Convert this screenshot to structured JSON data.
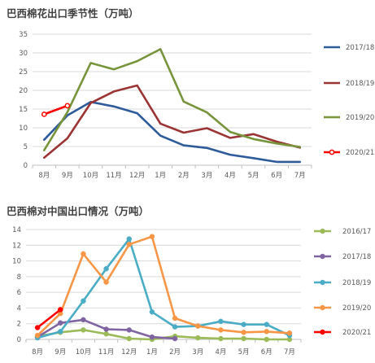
{
  "chart_data": [
    {
      "type": "line",
      "title": "巴西棉花出口季节性（万吨）",
      "categories": [
        "8月",
        "9月",
        "10月",
        "11月",
        "12月",
        "1月",
        "2月",
        "3月",
        "4月",
        "5月",
        "6月",
        "7月"
      ],
      "ylim": [
        0,
        35
      ],
      "yticks": [
        0,
        5,
        10,
        15,
        20,
        25,
        30,
        35
      ],
      "grid": true,
      "legend_position": "right",
      "series": [
        {
          "name": "2017/18",
          "color": "#2e5b9a",
          "marker": "none",
          "values": [
            6.8,
            13.3,
            16.9,
            15.7,
            13.9,
            7.9,
            5.3,
            4.6,
            2.8,
            1.9,
            0.9,
            0.9
          ]
        },
        {
          "name": "2018/19",
          "color": "#9b3435",
          "marker": "none",
          "values": [
            2.0,
            7.2,
            16.6,
            19.7,
            21.3,
            11.1,
            8.7,
            9.9,
            7.3,
            8.3,
            6.3,
            4.7
          ]
        },
        {
          "name": "2019/20",
          "color": "#77943b",
          "marker": "none",
          "values": [
            4.0,
            14.2,
            27.3,
            25.6,
            27.8,
            31.0,
            17.0,
            14.1,
            8.9,
            7.0,
            5.8,
            4.9
          ]
        },
        {
          "name": "2020/21",
          "color": "#ff0000",
          "marker": "open-circle",
          "values": [
            13.6,
            15.9,
            null,
            null,
            null,
            null,
            null,
            null,
            null,
            null,
            null,
            null
          ]
        }
      ]
    },
    {
      "type": "line",
      "title": "巴西棉对中国出口情况（万吨）",
      "categories": [
        "8月",
        "9月",
        "10月",
        "11月",
        "12月",
        "1月",
        "2月",
        "3月",
        "4月",
        "5月",
        "6月",
        "7月"
      ],
      "ylim": [
        0,
        14
      ],
      "yticks": [
        0,
        2,
        4,
        6,
        8,
        10,
        12,
        14
      ],
      "grid": true,
      "legend_position": "right",
      "series": [
        {
          "name": "2016/17",
          "color": "#9bbb59",
          "marker": "filled-circle",
          "values": [
            0.4,
            0.9,
            1.2,
            0.7,
            0.1,
            0.0,
            0.4,
            0.2,
            0.1,
            0.1,
            0.0,
            0.0
          ]
        },
        {
          "name": "2017/18",
          "color": "#8064a2",
          "marker": "filled-circle",
          "values": [
            0.3,
            2.1,
            2.5,
            1.3,
            1.2,
            0.3,
            0.1,
            null,
            null,
            null,
            null,
            null
          ]
        },
        {
          "name": "2018/19",
          "color": "#4bacc6",
          "marker": "filled-circle",
          "values": [
            0.2,
            1.0,
            4.9,
            9.0,
            12.8,
            3.5,
            1.6,
            1.7,
            2.3,
            1.9,
            1.9,
            0.5
          ]
        },
        {
          "name": "2019/20",
          "color": "#f79646",
          "marker": "filled-circle",
          "values": [
            0.5,
            3.3,
            10.9,
            7.3,
            12.1,
            13.1,
            2.7,
            1.7,
            1.2,
            0.9,
            1.0,
            0.8
          ]
        },
        {
          "name": "2020/21",
          "color": "#ff0000",
          "marker": "filled-circle",
          "values": [
            1.5,
            3.8,
            null,
            null,
            null,
            null,
            null,
            null,
            null,
            null,
            null,
            null
          ]
        }
      ]
    }
  ]
}
